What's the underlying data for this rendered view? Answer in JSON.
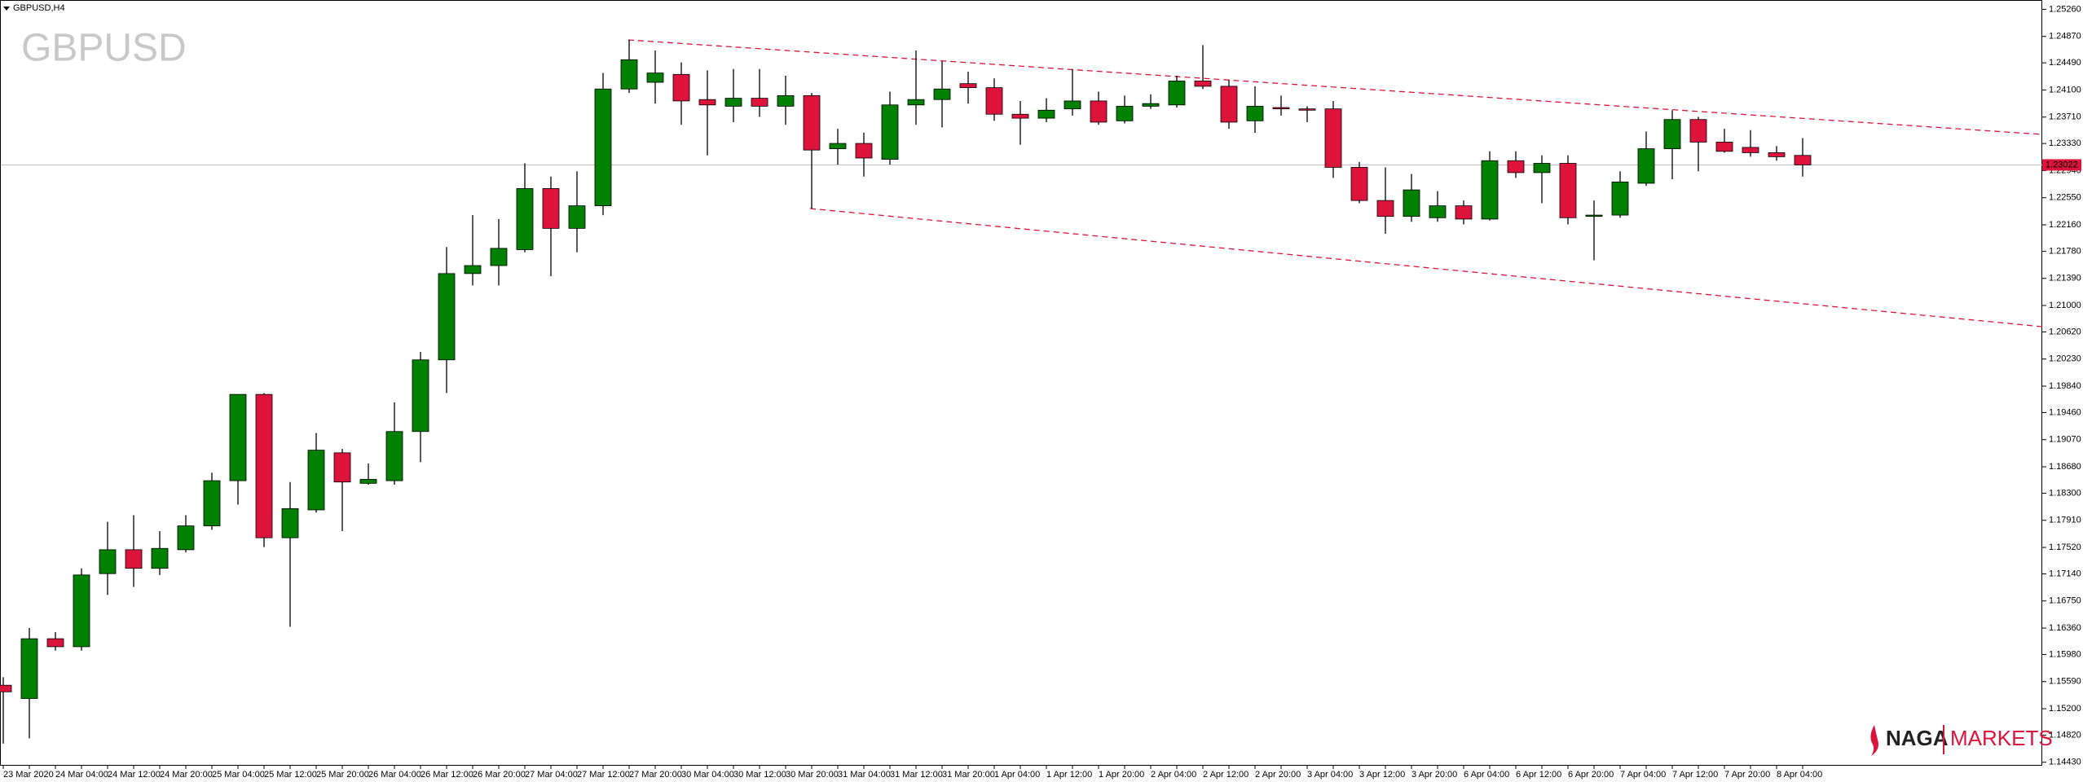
{
  "chart_data": {
    "type": "candlestick",
    "title": "GBPUSD,H4",
    "watermark": "GBPUSD",
    "logo": {
      "brand": "NAGA",
      "product": "MARKETS"
    },
    "up_color": "#008000",
    "down_color": "#dc143c",
    "categories": [
      "23 Mar 2020",
      null,
      "24 Mar 04:00",
      null,
      "24 Mar 12:00",
      null,
      "24 Mar 20:00",
      null,
      "25 Mar 04:00",
      null,
      "25 Mar 12:00",
      null,
      "25 Mar 20:00",
      null,
      "26 Mar 04:00",
      null,
      "26 Mar 12:00",
      null,
      "26 Mar 20:00",
      null,
      "27 Mar 04:00",
      null,
      "27 Mar 12:00",
      null,
      "27 Mar 20:00",
      null,
      "30 Mar 04:00",
      null,
      "30 Mar 12:00",
      null,
      "30 Mar 20:00",
      null,
      "31 Mar 04:00",
      null,
      "31 Mar 12:00",
      null,
      "31 Mar 20:00",
      null,
      "1 Apr 04:00",
      null,
      "1 Apr 12:00",
      null,
      "1 Apr 20:00",
      null,
      "2 Apr 04:00",
      null,
      "2 Apr 12:00",
      null,
      "2 Apr 20:00",
      null,
      "3 Apr 04:00",
      null,
      "3 Apr 12:00",
      null,
      "3 Apr 20:00",
      null,
      "6 Apr 04:00",
      null,
      "6 Apr 12:00",
      null,
      "6 Apr 20:00",
      null,
      "7 Apr 04:00",
      null,
      "7 Apr 12:00",
      null,
      "7 Apr 20:00",
      null,
      "8 Apr 04:00",
      null
    ],
    "open": [
      1.15538,
      1.15347,
      1.16207,
      1.16092,
      1.17143,
      1.17487,
      1.17219,
      1.17487,
      1.1783,
      1.1848,
      1.19721,
      1.17659,
      1.1806,
      1.18881,
      1.18442,
      1.1848,
      1.19187,
      1.20218,
      1.21459,
      1.21574,
      1.21803,
      1.22682,
      1.22109,
      1.22434,
      1.24114,
      1.2421,
      1.24324,
      1.23962,
      1.23866,
      1.23981,
      1.23866,
      1.24019,
      1.23255,
      1.23331,
      1.23102,
      1.23885,
      1.23962,
      1.24191,
      1.24133,
      1.23751,
      1.23694,
      1.23828,
      1.23942,
      1.23656,
      1.23866,
      1.23885,
      1.24229,
      1.24153,
      1.23656,
      1.23847,
      1.23828,
      1.23828,
      1.22987,
      1.2251,
      1.22281,
      1.22262,
      1.22434,
      1.22243,
      1.23083,
      1.22911,
      1.23045,
      1.22281,
      1.223,
      1.22758,
      1.23255,
      1.23675,
      1.2335,
      1.23274,
      1.23198,
      1.23159
    ],
    "high": [
      1.15653,
      1.1636,
      1.16302,
      1.17219,
      1.17888,
      1.17983,
      1.17754,
      1.17983,
      1.18594,
      1.19721,
      1.1974,
      1.18461,
      1.19167,
      1.18938,
      1.18728,
      1.19607,
      1.20333,
      1.21841,
      1.223,
      1.22243,
      1.23045,
      1.22854,
      1.2293,
      1.24344,
      1.24821,
      1.24668,
      1.24496,
      1.24382,
      1.24401,
      1.24401,
      1.24305,
      1.24057,
      1.23541,
      1.23484,
      1.24076,
      1.24668,
      1.24515,
      1.24363,
      1.24267,
      1.23942,
      1.23981,
      1.24401,
      1.24076,
      1.24019,
      1.24038,
      1.24305,
      1.24745,
      1.24248,
      1.24153,
      1.24019,
      1.23866,
      1.23942,
      1.23064,
      1.22987,
      1.22892,
      1.22644,
      1.2251,
      1.23217,
      1.23217,
      1.23159,
      1.23159,
      1.2251,
      1.2293,
      1.23503,
      1.23809,
      1.23713,
      1.23541,
      1.23522,
      1.23293,
      1.23408
    ],
    "low": [
      1.14698,
      1.14774,
      1.16035,
      1.16035,
      1.16837,
      1.16952,
      1.17124,
      1.17448,
      1.17773,
      1.18136,
      1.17525,
      1.16379,
      1.18021,
      1.17754,
      1.18423,
      1.18423,
      1.18747,
      1.1974,
      1.21288,
      1.21288,
      1.21765,
      1.21421,
      1.21765,
      1.223,
      1.24057,
      1.23904,
      1.23599,
      1.23159,
      1.23637,
      1.23713,
      1.23599,
      1.22395,
      1.23026,
      1.22854,
      1.23026,
      1.23599,
      1.2356,
      1.23904,
      1.23656,
      1.23312,
      1.23637,
      1.23732,
      1.23599,
      1.23618,
      1.23828,
      1.23847,
      1.24114,
      1.23541,
      1.23484,
      1.23732,
      1.23637,
      1.22835,
      1.22472,
      1.22032,
      1.22204,
      1.22204,
      1.22166,
      1.22223,
      1.22835,
      1.22472,
      1.22166,
      1.2165,
      1.22262,
      1.2272,
      1.22816,
      1.2293,
      1.23198,
      1.2314,
      1.23083,
      1.22854
    ],
    "close": [
      1.15443,
      1.16207,
      1.16092,
      1.17124,
      1.17487,
      1.17219,
      1.17506,
      1.1783,
      1.1848,
      1.19721,
      1.17659,
      1.18079,
      1.18919,
      1.18461,
      1.18499,
      1.19187,
      1.20218,
      1.21459,
      1.21574,
      1.21822,
      1.22682,
      1.22109,
      1.22434,
      1.24114,
      1.24535,
      1.24344,
      1.23942,
      1.23885,
      1.23981,
      1.23866,
      1.24019,
      1.23236,
      1.23331,
      1.23121,
      1.23885,
      1.23962,
      1.24114,
      1.24133,
      1.23751,
      1.23694,
      1.23809,
      1.23942,
      1.23637,
      1.23866,
      1.23904,
      1.24229,
      1.24153,
      1.23637,
      1.23866,
      1.23828,
      1.23809,
      1.22987,
      1.2251,
      1.22281,
      1.22663,
      1.22434,
      1.22243,
      1.23083,
      1.22911,
      1.23045,
      1.22262,
      1.223,
      1.22777,
      1.23255,
      1.23675,
      1.2335,
      1.23217,
      1.23198,
      1.2314,
      1.23022
    ],
    "current_price": 1.23022,
    "ylim": [
      1.14392,
      1.25394
    ],
    "yticks": [
      {
        "value": 1.2526,
        "label": "1.25260"
      },
      {
        "value": 1.2487,
        "label": "1.24870"
      },
      {
        "value": 1.2449,
        "label": "1.24490"
      },
      {
        "value": 1.241,
        "label": "1.24100"
      },
      {
        "value": 1.2371,
        "label": "1.23710"
      },
      {
        "value": 1.2333,
        "label": "1.23330"
      },
      {
        "value": 1.2294,
        "label": "1.22940"
      },
      {
        "value": 1.2255,
        "label": "1.22550"
      },
      {
        "value": 1.2216,
        "label": "1.22160"
      },
      {
        "value": 1.2178,
        "label": "1.21780"
      },
      {
        "value": 1.2139,
        "label": "1.21390"
      },
      {
        "value": 1.21,
        "label": "1.21000"
      },
      {
        "value": 1.2062,
        "label": "1.20620"
      },
      {
        "value": 1.2023,
        "label": "1.20230"
      },
      {
        "value": 1.1984,
        "label": "1.19840"
      },
      {
        "value": 1.1946,
        "label": "1.19460"
      },
      {
        "value": 1.1907,
        "label": "1.19070"
      },
      {
        "value": 1.1868,
        "label": "1.18680"
      },
      {
        "value": 1.183,
        "label": "1.18300"
      },
      {
        "value": 1.1791,
        "label": "1.17910"
      },
      {
        "value": 1.1752,
        "label": "1.17520"
      },
      {
        "value": 1.1714,
        "label": "1.17140"
      },
      {
        "value": 1.1675,
        "label": "1.16750"
      },
      {
        "value": 1.1636,
        "label": "1.16360"
      },
      {
        "value": 1.1598,
        "label": "1.15980"
      },
      {
        "value": 1.1559,
        "label": "1.15590"
      },
      {
        "value": 1.152,
        "label": "1.15200"
      },
      {
        "value": 1.1482,
        "label": "1.14820"
      },
      {
        "value": 1.1443,
        "label": "1.14430"
      }
    ]
  }
}
